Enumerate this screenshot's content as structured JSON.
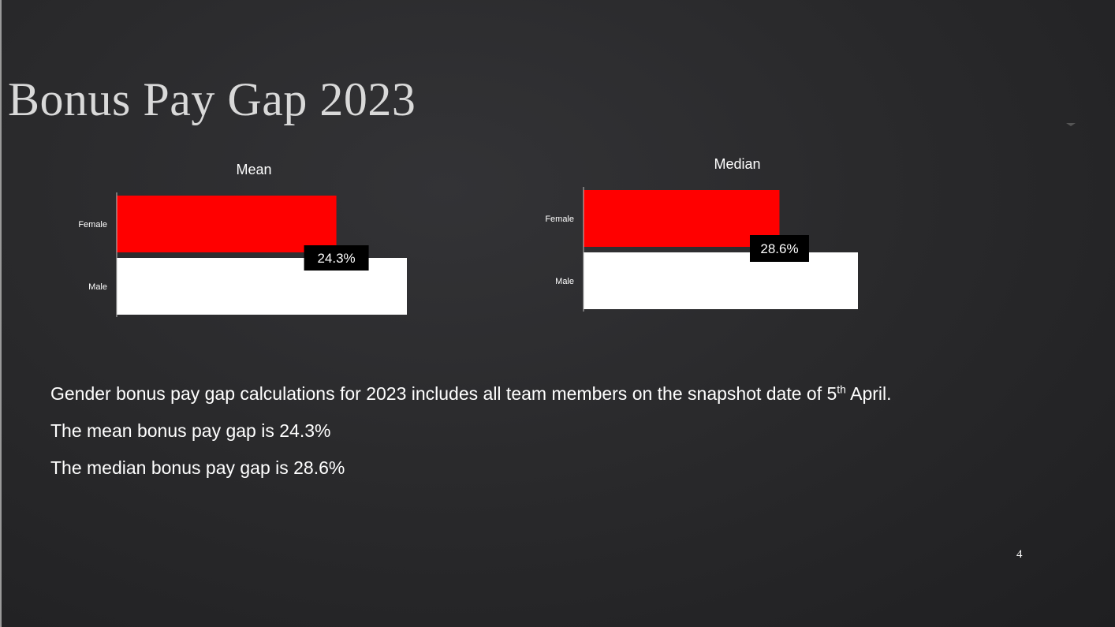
{
  "slide": {
    "title": "Bonus Pay Gap 2023",
    "page_number": "4",
    "body": {
      "line1_text": "Gender bonus pay gap calculations for 2023 includes all team members on the snapshot date of 5",
      "line1_sup": "th",
      "line1_end": " April.",
      "line2": "The mean bonus pay gap is 24.3%",
      "line3": "The median bonus pay gap is 28.6%"
    }
  },
  "colors": {
    "female": "#ff0000",
    "male": "#ffffff",
    "label_box": "#000000"
  },
  "chart_data": [
    {
      "type": "bar",
      "orientation": "horizontal",
      "title": "Mean",
      "categories": [
        "Female",
        "Male"
      ],
      "values": [
        75.7,
        100
      ],
      "xlim": [
        0,
        100
      ],
      "data_label": "24.3%",
      "grid": false,
      "legend": "none"
    },
    {
      "type": "bar",
      "orientation": "horizontal",
      "title": "Median",
      "categories": [
        "Female",
        "Male"
      ],
      "values": [
        71.4,
        100
      ],
      "xlim": [
        0,
        100
      ],
      "data_label": "28.6%",
      "grid": false,
      "legend": "none"
    }
  ]
}
